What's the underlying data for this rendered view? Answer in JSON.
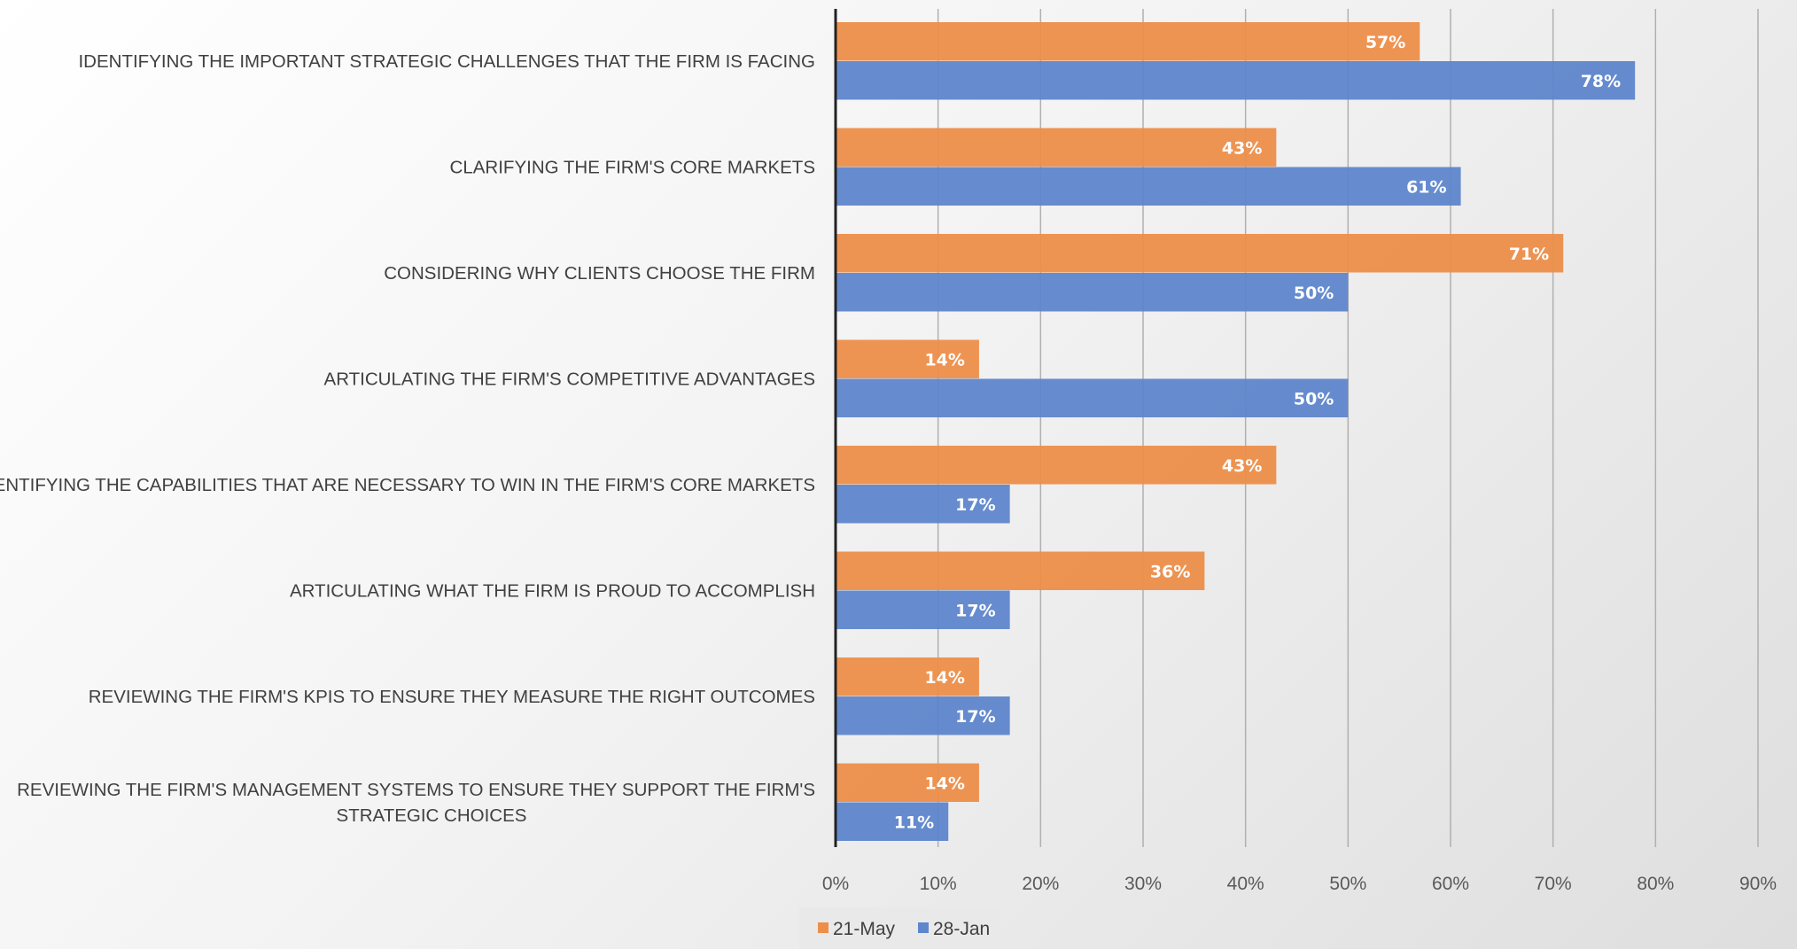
{
  "chart_data": {
    "type": "bar",
    "orientation": "horizontal",
    "categories": [
      [
        "IDENTIFYING THE IMPORTANT STRATEGIC CHALLENGES THAT THE FIRM IS FACING"
      ],
      [
        "CLARIFYING THE FIRM'S CORE MARKETS"
      ],
      [
        "CONSIDERING WHY CLIENTS CHOOSE THE FIRM"
      ],
      [
        "ARTICULATING THE FIRM'S COMPETITIVE ADVANTAGES"
      ],
      [
        "IDENTIFYING THE CAPABILITIES THAT ARE NECESSARY TO WIN IN THE FIRM'S CORE MARKETS"
      ],
      [
        "ARTICULATING WHAT THE FIRM IS PROUD TO ACCOMPLISH"
      ],
      [
        "REVIEWING THE FIRM'S KPIS TO ENSURE THEY MEASURE THE RIGHT OUTCOMES"
      ],
      [
        "REVIEWING THE FIRM'S MANAGEMENT SYSTEMS TO ENSURE THEY SUPPORT THE FIRM'S",
        "STRATEGIC CHOICES"
      ]
    ],
    "series": [
      {
        "name": "21-May",
        "color": "#ED8E4A",
        "values": [
          57,
          43,
          71,
          14,
          43,
          36,
          14,
          14
        ],
        "labels": [
          "57%",
          "43%",
          "71%",
          "14%",
          "43%",
          "36%",
          "14%",
          "14%"
        ]
      },
      {
        "name": "28-Jan",
        "color": "#5E86CC",
        "values": [
          78,
          61,
          50,
          50,
          17,
          17,
          17,
          11
        ],
        "labels": [
          "78%",
          "61%",
          "50%",
          "50%",
          "17%",
          "17%",
          "17%",
          "11%"
        ]
      }
    ],
    "xlim": [
      0,
      90
    ],
    "xticks": [
      0,
      10,
      20,
      30,
      40,
      50,
      60,
      70,
      80,
      90
    ],
    "xtick_labels": [
      "0%",
      "10%",
      "20%",
      "30%",
      "40%",
      "50%",
      "60%",
      "70%",
      "80%",
      "90%"
    ],
    "title": "",
    "xlabel": "",
    "ylabel": "",
    "grid": "vertical",
    "legend_position": "bottom"
  }
}
